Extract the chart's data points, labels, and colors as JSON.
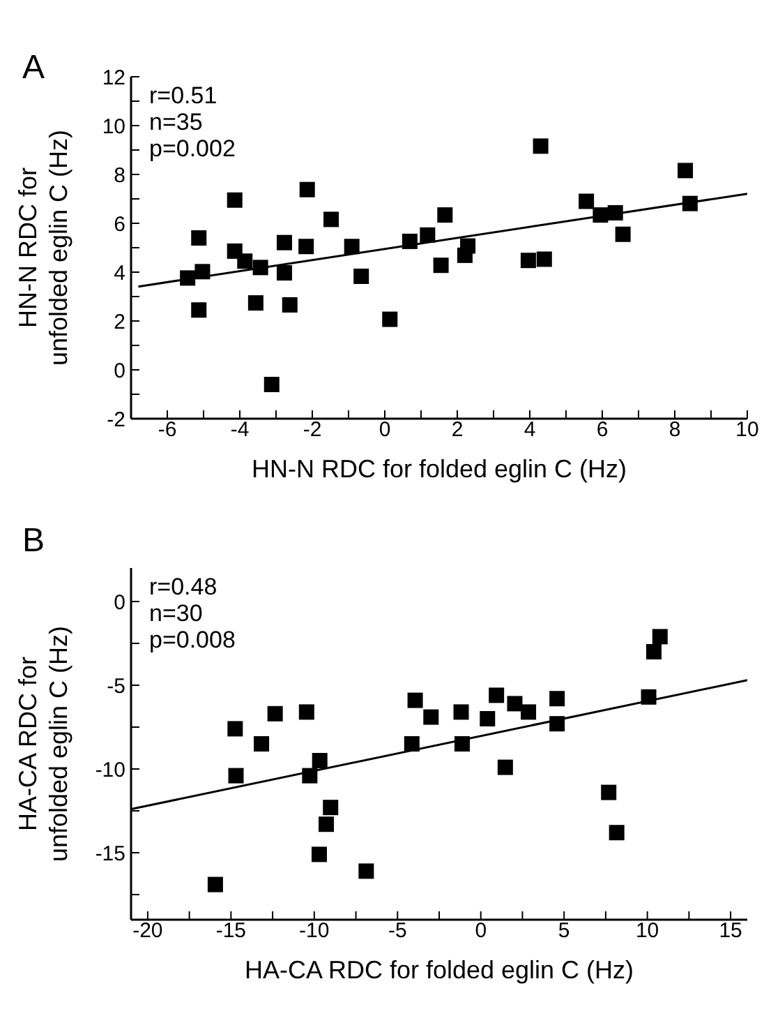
{
  "chart_data": [
    {
      "type": "scatter",
      "title": "A",
      "xlabel": "HN-N RDC for folded eglin C (Hz)",
      "ylabel": "HN-N RDC for\nunfolded eglin C (Hz)",
      "annotations": [
        "r=0.51",
        "n=35",
        "p=0.002"
      ],
      "xlim": [
        -7,
        10
      ],
      "xticks": [
        {
          "value": -7,
          "label": null
        },
        -6,
        {
          "value": -5,
          "label": null
        },
        -4,
        {
          "value": -3,
          "label": null
        },
        -2,
        {
          "value": -1,
          "label": null
        },
        0,
        {
          "value": 1,
          "label": null
        },
        2,
        {
          "value": 3,
          "label": null
        },
        4,
        {
          "value": 5,
          "label": null
        },
        6,
        {
          "value": 7,
          "label": null
        },
        8,
        {
          "value": 9,
          "label": null
        },
        10
      ],
      "ylim": [
        -2,
        12
      ],
      "yticks": [
        -2,
        {
          "value": -1,
          "label": null
        },
        0,
        {
          "value": 1,
          "label": null
        },
        2,
        {
          "value": 3,
          "label": null
        },
        4,
        {
          "value": 5,
          "label": null
        },
        6,
        {
          "value": 7,
          "label": null
        },
        8,
        {
          "value": 9,
          "label": null
        },
        10,
        {
          "value": 11,
          "label": null
        },
        12
      ],
      "marker": "square",
      "grid": false,
      "legend": false,
      "series": [
        {
          "type": "scatter",
          "color": "#000000",
          "x": [
            -5.44,
            -5.13,
            -5.03,
            -5.13,
            -4.14,
            -4.14,
            -3.86,
            -3.43,
            -3.56,
            -3.12,
            -2.77,
            -2.77,
            -2.62,
            -2.14,
            -2.17,
            -1.48,
            -0.91,
            -0.65,
            0.14,
            0.69,
            1.18,
            1.66,
            1.55,
            2.21,
            2.29,
            3.96,
            4.4,
            4.3,
            5.56,
            5.95,
            6.36,
            6.57,
            8.29,
            8.42
          ],
          "values": [
            3.76,
            5.4,
            4.02,
            2.45,
            6.95,
            4.86,
            4.45,
            4.19,
            2.74,
            -0.6,
            5.21,
            3.97,
            2.66,
            7.38,
            5.05,
            6.16,
            5.05,
            3.83,
            2.07,
            5.26,
            5.52,
            6.34,
            4.28,
            4.69,
            5.07,
            4.48,
            4.53,
            9.16,
            6.9,
            6.34,
            6.43,
            5.55,
            8.16,
            6.81
          ]
        },
        {
          "type": "line",
          "color": "#000000",
          "marker": "none",
          "x": [
            -6.8,
            10
          ],
          "values": [
            3.41,
            7.21
          ]
        }
      ]
    },
    {
      "type": "scatter",
      "title": "B",
      "xlabel": "HA-CA RDC for folded eglin C (Hz)",
      "ylabel": "HA-CA RDC for\nunfolded eglin C (Hz)",
      "annotations": [
        "r=0.48",
        "n=30",
        "p=0.008"
      ],
      "xlim": [
        -21,
        16
      ],
      "xticks": [
        -20,
        {
          "value": -17.5,
          "label": null
        },
        -15,
        {
          "value": -12.5,
          "label": null
        },
        -10,
        {
          "value": -7.5,
          "label": null
        },
        -5,
        {
          "value": -2.5,
          "label": null
        },
        0,
        {
          "value": 2.5,
          "label": null
        },
        5,
        {
          "value": 7.5,
          "label": null
        },
        10,
        {
          "value": 12.5,
          "label": null
        },
        15
      ],
      "ylim": [
        -19,
        2
      ],
      "yticks": [
        {
          "value": -17.5,
          "label": null
        },
        -15,
        {
          "value": -12.5,
          "label": null
        },
        -10,
        {
          "value": -7.5,
          "label": null
        },
        -5,
        {
          "value": -2.5,
          "label": null
        },
        0
      ],
      "marker": "square",
      "grid": false,
      "legend": false,
      "series": [
        {
          "type": "scatter",
          "color": "#000000",
          "x": [
            -15.94,
            -14.75,
            -14.7,
            -13.17,
            -12.35,
            -10.46,
            -10.27,
            -9.67,
            -9.02,
            -9.28,
            -9.7,
            -6.88,
            -4.14,
            -3.94,
            -2.99,
            -1.18,
            -1.12,
            0.4,
            0.94,
            1.47,
            2.04,
            2.86,
            4.58,
            4.58,
            7.68,
            8.16,
            10.08,
            10.39,
            10.76
          ],
          "values": [
            -16.9,
            -7.6,
            -10.4,
            -8.5,
            -6.7,
            -6.6,
            -10.4,
            -9.5,
            -12.3,
            -13.3,
            -15.1,
            -16.1,
            -8.5,
            -5.9,
            -6.9,
            -6.6,
            -8.5,
            -7.0,
            -5.6,
            -9.9,
            -6.1,
            -6.6,
            -5.8,
            -7.3,
            -11.4,
            -13.8,
            -5.7,
            -3.0,
            -2.1
          ]
        },
        {
          "type": "line",
          "color": "#000000",
          "marker": "none",
          "x": [
            -21,
            16
          ],
          "values": [
            -12.4,
            -4.7
          ]
        }
      ]
    }
  ]
}
